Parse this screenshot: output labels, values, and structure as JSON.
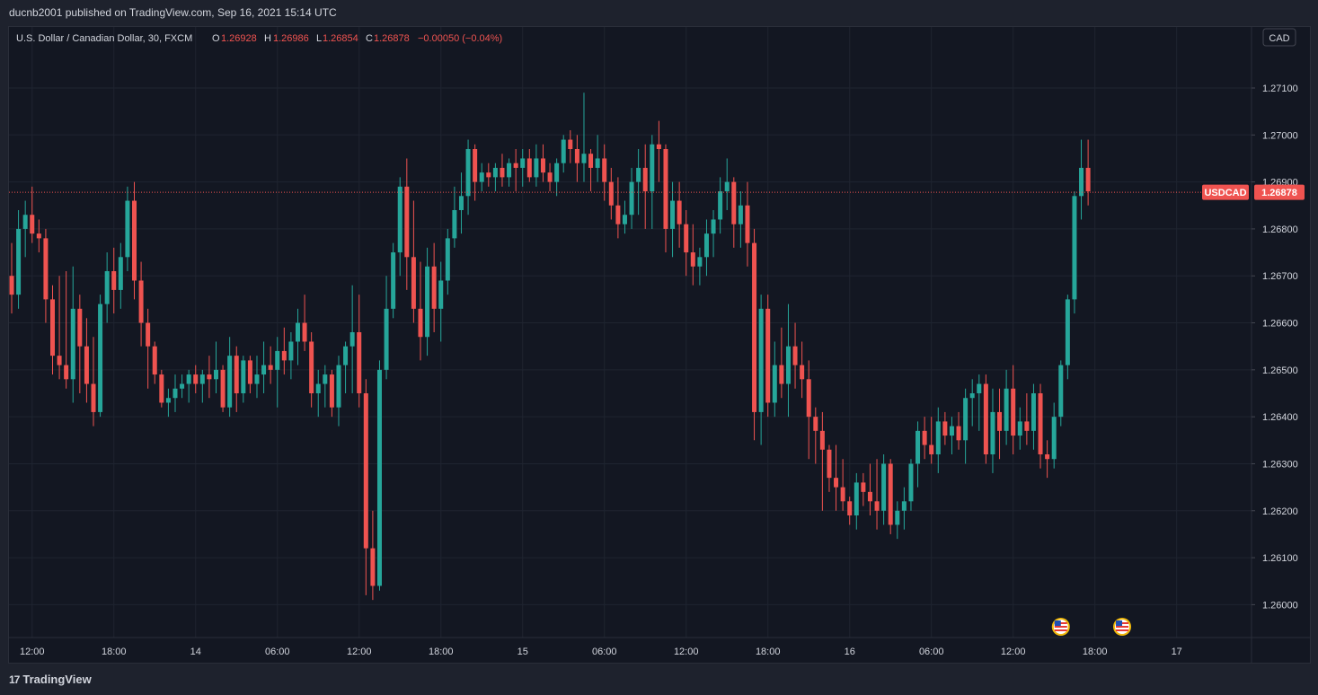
{
  "header": {
    "published": "ducnb2001 published on TradingView.com, Sep 16, 2021 15:14 UTC"
  },
  "legend": {
    "symbol": "U.S. Dollar / Canadian Dollar, 30, FXCM",
    "o_label": "O",
    "o_value": "1.26928",
    "h_label": "H",
    "h_value": "1.26986",
    "l_label": "L",
    "l_value": "1.26854",
    "c_label": "C",
    "c_value": "1.26878",
    "change": "−0.00050 (−0.04%)"
  },
  "currency_badge": "CAD",
  "price_tag": {
    "symbol": "USDCAD",
    "value": "1.26878"
  },
  "brand": {
    "name": "TradingView",
    "logo": "17"
  },
  "colors": {
    "up": "#26a69a",
    "down": "#ef5350",
    "background": "#131722",
    "grid": "#1f2430",
    "text": "#d1d4dc",
    "price_line": "#ef5350"
  },
  "chart_data": {
    "type": "candlestick",
    "symbol": "USDCAD",
    "interval": "30",
    "y_ticks": [
      1.26,
      1.261,
      1.262,
      1.263,
      1.264,
      1.265,
      1.266,
      1.267,
      1.268,
      1.269,
      1.27,
      1.271
    ],
    "y_tick_labels": [
      "1.26000",
      "1.26100",
      "1.26200",
      "1.26300",
      "1.26400",
      "1.26500",
      "1.26600",
      "1.26700",
      "1.26800",
      "1.26900",
      "1.27000",
      "1.27100"
    ],
    "ylim": [
      1.2593,
      1.2723
    ],
    "x_ticks": [
      {
        "label": "12:00",
        "index": 3
      },
      {
        "label": "18:00",
        "index": 15
      },
      {
        "label": "14",
        "index": 27
      },
      {
        "label": "06:00",
        "index": 39
      },
      {
        "label": "12:00",
        "index": 51
      },
      {
        "label": "18:00",
        "index": 63
      },
      {
        "label": "15",
        "index": 75
      },
      {
        "label": "06:00",
        "index": 87
      },
      {
        "label": "12:00",
        "index": 99
      },
      {
        "label": "18:00",
        "index": 111
      },
      {
        "label": "16",
        "index": 123
      },
      {
        "label": "06:00",
        "index": 135
      },
      {
        "label": "12:00",
        "index": 147
      },
      {
        "label": "18:00",
        "index": 159
      },
      {
        "label": "17",
        "index": 171
      }
    ],
    "last_price": 1.26878,
    "events": [
      {
        "index": 154,
        "icon": "us-flag-icon"
      },
      {
        "index": 163,
        "icon": "us-flag-icon"
      }
    ],
    "candles": [
      [
        1.267,
        1.2677,
        1.2662,
        1.2666
      ],
      [
        1.2666,
        1.2684,
        1.2663,
        1.268
      ],
      [
        1.268,
        1.2686,
        1.2674,
        1.2683
      ],
      [
        1.2683,
        1.2689,
        1.2677,
        1.2679
      ],
      [
        1.2679,
        1.2682,
        1.2675,
        1.2678
      ],
      [
        1.2678,
        1.268,
        1.266,
        1.2665
      ],
      [
        1.2665,
        1.2668,
        1.2649,
        1.2653
      ],
      [
        1.2653,
        1.267,
        1.2648,
        1.2651
      ],
      [
        1.2651,
        1.2671,
        1.2646,
        1.2648
      ],
      [
        1.2648,
        1.2672,
        1.2643,
        1.2663
      ],
      [
        1.2663,
        1.2666,
        1.2645,
        1.2655
      ],
      [
        1.2655,
        1.2661,
        1.2643,
        1.2647
      ],
      [
        1.2647,
        1.2657,
        1.2638,
        1.2641
      ],
      [
        1.2641,
        1.2666,
        1.264,
        1.2664
      ],
      [
        1.2664,
        1.2675,
        1.266,
        1.2671
      ],
      [
        1.2671,
        1.2676,
        1.2662,
        1.2667
      ],
      [
        1.2667,
        1.2677,
        1.2663,
        1.2674
      ],
      [
        1.2674,
        1.2689,
        1.2671,
        1.2686
      ],
      [
        1.2686,
        1.269,
        1.2665,
        1.2669
      ],
      [
        1.2669,
        1.2673,
        1.2655,
        1.266
      ],
      [
        1.266,
        1.2663,
        1.2646,
        1.2655
      ],
      [
        1.2655,
        1.2656,
        1.2647,
        1.2649
      ],
      [
        1.2649,
        1.265,
        1.2642,
        1.2643
      ],
      [
        1.2643,
        1.2646,
        1.264,
        1.2644
      ],
      [
        1.2644,
        1.2649,
        1.2641,
        1.2646
      ],
      [
        1.2646,
        1.2649,
        1.2644,
        1.2647
      ],
      [
        1.2647,
        1.265,
        1.2643,
        1.2649
      ],
      [
        1.2649,
        1.2651,
        1.2645,
        1.2647
      ],
      [
        1.2647,
        1.265,
        1.2643,
        1.2649
      ],
      [
        1.2649,
        1.2653,
        1.2644,
        1.2648
      ],
      [
        1.2648,
        1.2656,
        1.2645,
        1.265
      ],
      [
        1.265,
        1.2651,
        1.2641,
        1.2642
      ],
      [
        1.2642,
        1.2657,
        1.264,
        1.2653
      ],
      [
        1.2653,
        1.2655,
        1.2641,
        1.2645
      ],
      [
        1.2645,
        1.2653,
        1.2643,
        1.2652
      ],
      [
        1.2652,
        1.2653,
        1.2645,
        1.2647
      ],
      [
        1.2647,
        1.2653,
        1.2644,
        1.2649
      ],
      [
        1.2649,
        1.2656,
        1.2645,
        1.2651
      ],
      [
        1.2651,
        1.2655,
        1.2647,
        1.265
      ],
      [
        1.265,
        1.2657,
        1.2642,
        1.2654
      ],
      [
        1.2654,
        1.2659,
        1.2649,
        1.2652
      ],
      [
        1.2652,
        1.2658,
        1.2648,
        1.2656
      ],
      [
        1.2656,
        1.2663,
        1.2651,
        1.266
      ],
      [
        1.266,
        1.2666,
        1.2654,
        1.2656
      ],
      [
        1.2656,
        1.2658,
        1.2642,
        1.2645
      ],
      [
        1.2645,
        1.265,
        1.264,
        1.2647
      ],
      [
        1.2647,
        1.2651,
        1.2642,
        1.2649
      ],
      [
        1.2649,
        1.265,
        1.264,
        1.2642
      ],
      [
        1.2642,
        1.2653,
        1.2638,
        1.2651
      ],
      [
        1.2651,
        1.2656,
        1.2645,
        1.2655
      ],
      [
        1.2655,
        1.2668,
        1.2645,
        1.2658
      ],
      [
        1.2658,
        1.2666,
        1.2642,
        1.2645
      ],
      [
        1.2645,
        1.2648,
        1.2602,
        1.2612
      ],
      [
        1.2612,
        1.262,
        1.2601,
        1.2604
      ],
      [
        1.2604,
        1.2652,
        1.2603,
        1.265
      ],
      [
        1.265,
        1.267,
        1.2648,
        1.2663
      ],
      [
        1.2663,
        1.2677,
        1.2661,
        1.2675
      ],
      [
        1.2675,
        1.2691,
        1.267,
        1.2689
      ],
      [
        1.2689,
        1.2695,
        1.2667,
        1.2674
      ],
      [
        1.2674,
        1.2686,
        1.266,
        1.2663
      ],
      [
        1.2663,
        1.2673,
        1.2652,
        1.2657
      ],
      [
        1.2657,
        1.2676,
        1.2653,
        1.2672
      ],
      [
        1.2672,
        1.2677,
        1.2658,
        1.2663
      ],
      [
        1.2663,
        1.2673,
        1.2656,
        1.2669
      ],
      [
        1.2669,
        1.268,
        1.2666,
        1.2678
      ],
      [
        1.2678,
        1.2689,
        1.2676,
        1.2684
      ],
      [
        1.2684,
        1.2692,
        1.2679,
        1.2687
      ],
      [
        1.2687,
        1.2699,
        1.2683,
        1.2697
      ],
      [
        1.2697,
        1.2698,
        1.2686,
        1.269
      ],
      [
        1.269,
        1.2694,
        1.2688,
        1.2692
      ],
      [
        1.2692,
        1.2694,
        1.2689,
        1.2691
      ],
      [
        1.2691,
        1.2694,
        1.2688,
        1.2693
      ],
      [
        1.2693,
        1.2696,
        1.2689,
        1.2691
      ],
      [
        1.2691,
        1.2695,
        1.2689,
        1.2694
      ],
      [
        1.2694,
        1.2697,
        1.2688,
        1.2693
      ],
      [
        1.2693,
        1.2697,
        1.2689,
        1.2695
      ],
      [
        1.2695,
        1.2697,
        1.269,
        1.2691
      ],
      [
        1.2691,
        1.2698,
        1.2689,
        1.2695
      ],
      [
        1.2695,
        1.2698,
        1.269,
        1.2692
      ],
      [
        1.2692,
        1.2694,
        1.2688,
        1.269
      ],
      [
        1.269,
        1.2695,
        1.2687,
        1.2694
      ],
      [
        1.2694,
        1.27,
        1.2692,
        1.2699
      ],
      [
        1.2699,
        1.2701,
        1.2694,
        1.2697
      ],
      [
        1.2697,
        1.27,
        1.269,
        1.2694
      ],
      [
        1.2694,
        1.2709,
        1.269,
        1.2696
      ],
      [
        1.2696,
        1.2697,
        1.2688,
        1.2693
      ],
      [
        1.2693,
        1.27,
        1.269,
        1.2695
      ],
      [
        1.2695,
        1.2698,
        1.2686,
        1.269
      ],
      [
        1.269,
        1.2693,
        1.2682,
        1.2685
      ],
      [
        1.2685,
        1.2691,
        1.2678,
        1.2681
      ],
      [
        1.2681,
        1.2686,
        1.2679,
        1.2683
      ],
      [
        1.2683,
        1.2693,
        1.268,
        1.269
      ],
      [
        1.269,
        1.2697,
        1.2683,
        1.2693
      ],
      [
        1.2693,
        1.2698,
        1.268,
        1.2688
      ],
      [
        1.2688,
        1.27,
        1.268,
        1.2698
      ],
      [
        1.2698,
        1.2703,
        1.269,
        1.2697
      ],
      [
        1.2697,
        1.2698,
        1.2675,
        1.268
      ],
      [
        1.268,
        1.269,
        1.2674,
        1.2686
      ],
      [
        1.2686,
        1.269,
        1.2676,
        1.2681
      ],
      [
        1.2681,
        1.2684,
        1.267,
        1.2675
      ],
      [
        1.2675,
        1.2681,
        1.2668,
        1.2672
      ],
      [
        1.2672,
        1.2676,
        1.2668,
        1.2674
      ],
      [
        1.2674,
        1.2682,
        1.267,
        1.2679
      ],
      [
        1.2679,
        1.2684,
        1.2674,
        1.2682
      ],
      [
        1.2682,
        1.2691,
        1.2679,
        1.2688
      ],
      [
        1.2688,
        1.2695,
        1.2684,
        1.269
      ],
      [
        1.269,
        1.2691,
        1.2676,
        1.2681
      ],
      [
        1.2681,
        1.2688,
        1.2676,
        1.2685
      ],
      [
        1.2685,
        1.269,
        1.2672,
        1.2677
      ],
      [
        1.2677,
        1.268,
        1.2635,
        1.2641
      ],
      [
        1.2641,
        1.2666,
        1.2634,
        1.2663
      ],
      [
        1.2663,
        1.2666,
        1.264,
        1.2643
      ],
      [
        1.2643,
        1.2656,
        1.264,
        1.2651
      ],
      [
        1.2651,
        1.2659,
        1.2644,
        1.2647
      ],
      [
        1.2647,
        1.2664,
        1.264,
        1.2655
      ],
      [
        1.2655,
        1.266,
        1.2646,
        1.2651
      ],
      [
        1.2651,
        1.2656,
        1.2644,
        1.2648
      ],
      [
        1.2648,
        1.2652,
        1.2631,
        1.264
      ],
      [
        1.264,
        1.2642,
        1.263,
        1.2637
      ],
      [
        1.2637,
        1.2641,
        1.262,
        1.2633
      ],
      [
        1.2633,
        1.2634,
        1.2624,
        1.2627
      ],
      [
        1.2627,
        1.2634,
        1.262,
        1.2625
      ],
      [
        1.2625,
        1.2631,
        1.262,
        1.2622
      ],
      [
        1.2622,
        1.2623,
        1.2617,
        1.2619
      ],
      [
        1.2619,
        1.2628,
        1.2616,
        1.2626
      ],
      [
        1.2626,
        1.2628,
        1.2621,
        1.2624
      ],
      [
        1.2624,
        1.263,
        1.2619,
        1.2622
      ],
      [
        1.2622,
        1.2631,
        1.2616,
        1.262
      ],
      [
        1.262,
        1.2632,
        1.2617,
        1.263
      ],
      [
        1.263,
        1.2631,
        1.2615,
        1.2617
      ],
      [
        1.2617,
        1.2622,
        1.2614,
        1.262
      ],
      [
        1.262,
        1.2625,
        1.2616,
        1.2622
      ],
      [
        1.2622,
        1.2631,
        1.262,
        1.263
      ],
      [
        1.263,
        1.2639,
        1.2625,
        1.2637
      ],
      [
        1.2637,
        1.264,
        1.2631,
        1.2634
      ],
      [
        1.2634,
        1.264,
        1.263,
        1.2632
      ],
      [
        1.2632,
        1.2642,
        1.2628,
        1.2639
      ],
      [
        1.2639,
        1.2641,
        1.2634,
        1.2636
      ],
      [
        1.2636,
        1.264,
        1.2632,
        1.2638
      ],
      [
        1.2638,
        1.2641,
        1.2633,
        1.2635
      ],
      [
        1.2635,
        1.2646,
        1.263,
        1.2644
      ],
      [
        1.2644,
        1.2648,
        1.2638,
        1.2645
      ],
      [
        1.2645,
        1.2649,
        1.2637,
        1.2647
      ],
      [
        1.2647,
        1.2649,
        1.263,
        1.2632
      ],
      [
        1.2632,
        1.2646,
        1.2628,
        1.2641
      ],
      [
        1.2641,
        1.2646,
        1.2631,
        1.2637
      ],
      [
        1.2637,
        1.265,
        1.2634,
        1.2646
      ],
      [
        1.2646,
        1.2651,
        1.2632,
        1.2636
      ],
      [
        1.2636,
        1.2642,
        1.2633,
        1.2639
      ],
      [
        1.2639,
        1.2645,
        1.2634,
        1.2637
      ],
      [
        1.2637,
        1.2647,
        1.2633,
        1.2645
      ],
      [
        1.2645,
        1.2647,
        1.2629,
        1.2632
      ],
      [
        1.2632,
        1.2635,
        1.2627,
        1.2631
      ],
      [
        1.2631,
        1.2643,
        1.2629,
        1.264
      ],
      [
        1.264,
        1.2652,
        1.2638,
        1.2651
      ],
      [
        1.2651,
        1.2666,
        1.2648,
        1.2665
      ],
      [
        1.2665,
        1.2688,
        1.2662,
        1.2687
      ],
      [
        1.2687,
        1.2699,
        1.2682,
        1.2693
      ],
      [
        1.2693,
        1.2699,
        1.2685,
        1.2688
      ]
    ]
  }
}
